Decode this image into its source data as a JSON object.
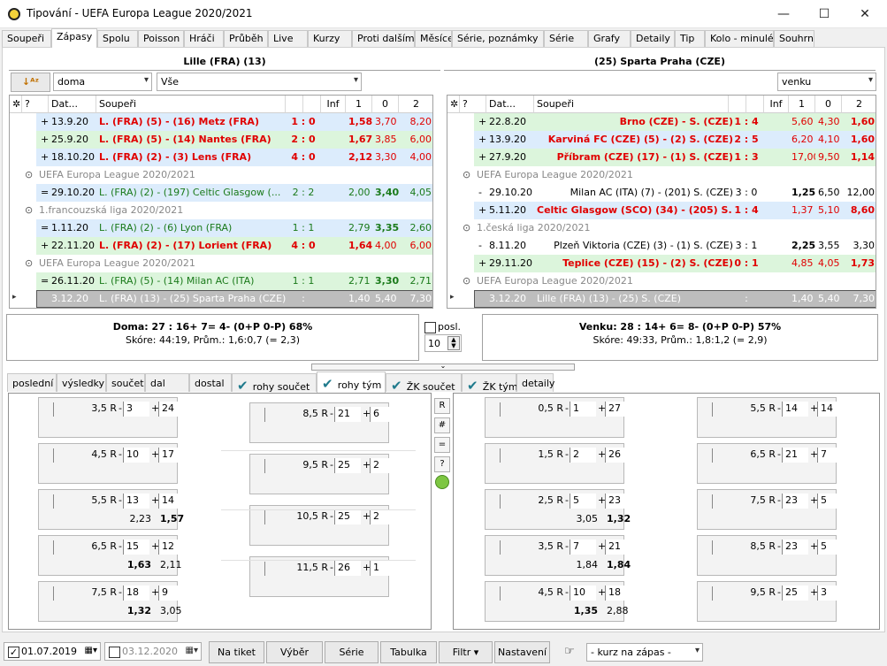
{
  "window": {
    "title": "Tipování - UEFA Europa League 2020/2021",
    "min": "—",
    "max": "☐",
    "close": "✕"
  },
  "tabs": [
    "Soupeři",
    "Zápasy",
    "Spolu",
    "Poisson",
    "Hráči",
    "Průběh",
    "Live",
    "Kurzy",
    "Proti dalším",
    "Měsíce",
    "Série, poznámky",
    "Série",
    "Grafy",
    "Detaily",
    "Tip",
    "Kolo - minulé",
    "Souhrn"
  ],
  "left": {
    "team": "Lille (FRA) (13)",
    "filter1": "doma",
    "filter2": "Vše",
    "cols": [
      "?",
      "Dat...",
      "Soupeři",
      "Inf",
      "1",
      "0",
      "2"
    ],
    "rows": [
      {
        "t": "m",
        "bg": "#dcecfc",
        "s": "+",
        "d": "13.9.20",
        "opp": "L. (FRA) (5) - (16) Metz (FRA)",
        "sc": "1 : 0",
        "o1": "1,58",
        "o0": "3,70",
        "o2": "8,20",
        "st": "red",
        "b": 1
      },
      {
        "t": "m",
        "bg": "#dcf5dc",
        "s": "+",
        "d": "25.9.20",
        "opp": "L. (FRA) (5) - (14) Nantes (FRA)",
        "sc": "2 : 0",
        "o1": "1,67",
        "o0": "3,85",
        "o2": "6,00",
        "st": "red",
        "b": 1
      },
      {
        "t": "m",
        "bg": "#dcecfc",
        "s": "+",
        "d": "18.10.20",
        "opp": "L. (FRA) (2) - (3) Lens (FRA)",
        "sc": "4 : 0",
        "o1": "2,12",
        "o0": "3,30",
        "o2": "4,00",
        "st": "red",
        "b": 1
      },
      {
        "t": "s",
        "label": "UEFA Europa League 2020/2021"
      },
      {
        "t": "m",
        "bg": "#dcecfc",
        "s": "=",
        "d": "29.10.20",
        "opp": "L. (FRA) (2) - (197) Celtic Glasgow (...",
        "sc": "2 : 2",
        "o1": "2,00",
        "o0": "3,40",
        "o2": "4,05",
        "st": "green",
        "b": 0
      },
      {
        "t": "s",
        "label": "1.francouzská liga 2020/2021"
      },
      {
        "t": "m",
        "bg": "#dcecfc",
        "s": "=",
        "d": "1.11.20",
        "opp": "L. (FRA) (2) - (6) Lyon (FRA)",
        "sc": "1 : 1",
        "o1": "2,79",
        "o0": "3,35",
        "o2": "2,60",
        "st": "green",
        "b": 0
      },
      {
        "t": "m",
        "bg": "#dcf5dc",
        "s": "+",
        "d": "22.11.20",
        "opp": "L. (FRA) (2) - (17) Lorient (FRA)",
        "sc": "4 : 0",
        "o1": "1,64",
        "o0": "4,00",
        "o2": "6,00",
        "st": "red",
        "b": 1
      },
      {
        "t": "s",
        "label": "UEFA Europa League 2020/2021"
      },
      {
        "t": "m",
        "bg": "#dcf5dc",
        "s": "=",
        "d": "26.11.20",
        "opp": "L. (FRA) (5) - (14) Milan AC (ITA)",
        "sc": "1 : 1",
        "o1": "2,71",
        "o0": "3,30",
        "o2": "2,71",
        "st": "green",
        "b": 0
      },
      {
        "t": "c",
        "d": "3.12.20",
        "opp": "L. (FRA) (13) - (25) Sparta Praha (CZE)",
        "sc": ":",
        "o1": "1,40",
        "o0": "5,40",
        "o2": "7,30"
      }
    ],
    "stat1": "Doma: 27 : 16+  7=  4- (0+P  0-P)  68%",
    "stat2": "Skóre: 44:19, Prům.: 1,6:0,7 (= 2,3)"
  },
  "right": {
    "team": "(25) Sparta Praha (CZE)",
    "filter1": "venku",
    "cols": [
      "?",
      "Dat...",
      "Soupeři",
      "Inf",
      "1",
      "0",
      "2"
    ],
    "rows": [
      {
        "t": "m",
        "bg": "#dcf5dc",
        "s": "+",
        "d": "22.8.20",
        "opp": "Brno (CZE) - S. (CZE)",
        "sc": "1 : 4",
        "o1": "5,60",
        "o0": "4,30",
        "o2": "1,60",
        "st": "red",
        "b": 2
      },
      {
        "t": "m",
        "bg": "#dcecfc",
        "s": "+",
        "d": "13.9.20",
        "opp": "Karviná FC (CZE) (5) - (2) S. (CZE)",
        "sc": "2 : 5",
        "o1": "6,20",
        "o0": "4,10",
        "o2": "1,60",
        "st": "red",
        "b": 2
      },
      {
        "t": "m",
        "bg": "#dcf5dc",
        "s": "+",
        "d": "27.9.20",
        "opp": "Příbram (CZE) (17) - (1) S. (CZE)",
        "sc": "1 : 3",
        "o1": "17,00",
        "o0": "9,50",
        "o2": "1,14",
        "st": "red",
        "b": 2
      },
      {
        "t": "s",
        "label": "UEFA Europa League 2020/2021"
      },
      {
        "t": "m",
        "bg": "#ffffff",
        "s": "-",
        "d": "29.10.20",
        "opp": "Milan AC (ITA) (7) - (201) S. (CZE)",
        "sc": "3 : 0",
        "o1": "1,25",
        "o0": "6,50",
        "o2": "12,00",
        "st": "plain",
        "b": 1
      },
      {
        "t": "m",
        "bg": "#dcecfc",
        "s": "+",
        "d": "5.11.20",
        "opp": "Celtic Glasgow (SCO) (34) - (205) S. (...",
        "sc": "1 : 4",
        "o1": "1,37",
        "o0": "5,10",
        "o2": "8,60",
        "st": "red",
        "b": 2
      },
      {
        "t": "s",
        "label": "1.česká liga 2020/2021"
      },
      {
        "t": "m",
        "bg": "#ffffff",
        "s": "-",
        "d": "8.11.20",
        "opp": "Plzeň Viktoria (CZE) (3) - (1) S. (CZE)",
        "sc": "3 : 1",
        "o1": "2,25",
        "o0": "3,55",
        "o2": "3,30",
        "st": "plain",
        "b": 1
      },
      {
        "t": "m",
        "bg": "#dcf5dc",
        "s": "+",
        "d": "29.11.20",
        "opp": "Teplice (CZE) (15) - (2) S. (CZE)",
        "sc": "0 : 1",
        "o1": "4,85",
        "o0": "4,05",
        "o2": "1,73",
        "st": "red",
        "b": 2
      },
      {
        "t": "s",
        "label": "UEFA Europa League 2020/2021"
      },
      {
        "t": "c",
        "d": "3.12.20",
        "opp": "Lille (FRA) (13) - (25) S. (CZE)",
        "sc": ":",
        "o1": "1,40",
        "o0": "5,40",
        "o2": "7,30"
      }
    ],
    "stat1": "Venku: 28 : 14+  6=  8- (0+P  0-P)  57%",
    "stat2": "Skóre: 49:33, Prům.: 1,8:1,2 (= 2,9)"
  },
  "posl": {
    "label": "posl.",
    "value": "10"
  },
  "tabs2": [
    {
      "l": "poslední",
      "c": 0
    },
    {
      "l": "výsledky",
      "c": 0
    },
    {
      "l": "součet",
      "c": 0
    },
    {
      "l": "dal",
      "c": 0
    },
    {
      "l": "dostal",
      "c": 0
    },
    {
      "l": "rohy součet",
      "c": 1
    },
    {
      "l": "rohy tým",
      "c": 1
    },
    {
      "l": "ŽK součet",
      "c": 1
    },
    {
      "l": "ŽK tým",
      "c": 1
    },
    {
      "l": "detaily",
      "c": 0
    }
  ],
  "leftCards": [
    {
      "l": "3,5 R",
      "a": "3",
      "b": "24",
      "va": "",
      "vb": ""
    },
    {
      "l": "4,5 R",
      "a": "10",
      "b": "17",
      "va": "",
      "vb": ""
    },
    {
      "l": "5,5 R",
      "a": "13",
      "b": "14",
      "va": "2,23",
      "vb": "1,57"
    },
    {
      "l": "6,5 R",
      "a": "15",
      "b": "12",
      "va": "1,63",
      "vb": "2,11"
    },
    {
      "l": "7,5 R",
      "a": "18",
      "b": "9",
      "va": "1,32",
      "vb": "3,05"
    },
    {
      "l": "8,5 R",
      "a": "21",
      "b": "6",
      "va": "",
      "vb": ""
    },
    {
      "l": "9,5 R",
      "a": "25",
      "b": "2",
      "va": "",
      "vb": ""
    },
    {
      "l": "10,5 R",
      "a": "25",
      "b": "2",
      "va": "",
      "vb": ""
    },
    {
      "l": "11,5 R",
      "a": "26",
      "b": "1",
      "va": "",
      "vb": ""
    }
  ],
  "rightCards": [
    {
      "l": "0,5 R",
      "a": "1",
      "b": "27",
      "va": "",
      "vb": ""
    },
    {
      "l": "1,5 R",
      "a": "2",
      "b": "26",
      "va": "",
      "vb": ""
    },
    {
      "l": "2,5 R",
      "a": "5",
      "b": "23",
      "va": "3,05",
      "vb": "1,32"
    },
    {
      "l": "3,5 R",
      "a": "7",
      "b": "21",
      "va": "1,84",
      "vb": "1,84"
    },
    {
      "l": "4,5 R",
      "a": "10",
      "b": "18",
      "va": "1,35",
      "vb": "2,88"
    },
    {
      "l": "5,5 R",
      "a": "14",
      "b": "14",
      "va": "",
      "vb": ""
    },
    {
      "l": "6,5 R",
      "a": "21",
      "b": "7",
      "va": "",
      "vb": ""
    },
    {
      "l": "7,5 R",
      "a": "23",
      "b": "5",
      "va": "",
      "vb": ""
    },
    {
      "l": "8,5 R",
      "a": "23",
      "b": "5",
      "va": "",
      "vb": ""
    },
    {
      "l": "9,5 R",
      "a": "25",
      "b": "3",
      "va": "",
      "vb": ""
    }
  ],
  "side": [
    "R",
    "#",
    "=",
    "?"
  ],
  "bottom": {
    "date1": "01.07.2019",
    "date2": "03.12.2020",
    "buttons": [
      "Na tiket",
      "Výběr",
      "Série",
      "Tabulka",
      "Filtr ▾",
      "Nastavení"
    ],
    "combo": "- kurz na zápas -"
  }
}
